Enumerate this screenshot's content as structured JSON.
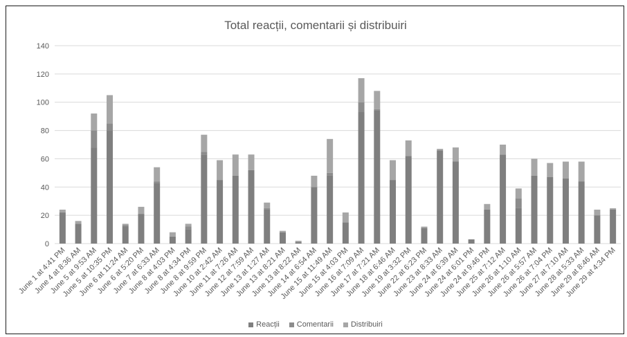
{
  "chart_data": {
    "type": "bar",
    "stacked": true,
    "title": "Total reacții, comentarii și distribuiri",
    "ylim": [
      0,
      140
    ],
    "yticks": [
      0,
      20,
      40,
      60,
      80,
      100,
      120,
      140
    ],
    "grid": true,
    "legend_position": "bottom",
    "categories": [
      "June 1 at 4:41 PM",
      "June 4 at 8:36 AM",
      "June 5 at 9:53 AM",
      "June 5 at 10:35 PM",
      "June 6 at 11:24 AM",
      "June 6 at 5:20 PM",
      "June 7 at 6:33 AM",
      "June 8 at 4:03 PM",
      "June 8 at 4:34 PM",
      "June 8 at 9:59 PM",
      "June 10 at 2:42 AM",
      "June 11 at 7:26 AM",
      "June 12 at 7:59 AM",
      "June 13 at 1:27 AM",
      "June 13 at 8:21 AM",
      "June 13 at 8:22 AM",
      "June 14 at 6:54 AM",
      "June 15 at 11:49 AM",
      "June 15 at 4:03 PM",
      "June 16 at 7:09 AM",
      "June 17 at 7:21 AM",
      "June 18 at 6:46 AM",
      "June 19 at 3:32 PM",
      "June 22 at 6:23 PM",
      "June 23 at 8:33 AM",
      "June 24 at 6:39 AM",
      "June 24 at 6:01 PM",
      "June 24 at 9:46 PM",
      "June 25 at 7:12 AM",
      "June 26 at 1:10 AM",
      "June 26 at 5:57 AM",
      "June 26 at 7:04 PM",
      "June 27 at 7:10 AM",
      "June 28 at 5:33 AM",
      "June 29 at 8:46 AM",
      "June 29 at 4:34 PM"
    ],
    "series": [
      {
        "name": "Reacții",
        "color": "#7f7f7f",
        "values": [
          22,
          14,
          68,
          80,
          12,
          21,
          43,
          5,
          10,
          63,
          45,
          48,
          52,
          24,
          8,
          1,
          40,
          48,
          15,
          93,
          94,
          45,
          62,
          11,
          66,
          58,
          3,
          24,
          63,
          25,
          48,
          47,
          46,
          44,
          20,
          24
        ]
      },
      {
        "name": "Comentarii",
        "color": "#8c8c8c",
        "values": [
          0,
          0,
          12,
          5,
          1,
          0,
          1,
          0,
          2,
          2,
          0,
          0,
          0,
          1,
          0,
          0,
          0,
          2,
          0,
          7,
          1,
          0,
          0,
          0,
          0,
          0,
          0,
          0,
          0,
          7,
          0,
          0,
          0,
          0,
          0,
          0
        ]
      },
      {
        "name": "Distribuiri",
        "color": "#a6a6a6",
        "values": [
          2,
          2,
          12,
          20,
          1,
          5,
          10,
          3,
          2,
          12,
          14,
          15,
          11,
          4,
          1,
          1,
          8,
          24,
          7,
          17,
          13,
          14,
          11,
          1,
          1,
          10,
          0,
          4,
          7,
          7,
          12,
          10,
          12,
          14,
          4,
          1
        ]
      }
    ]
  }
}
